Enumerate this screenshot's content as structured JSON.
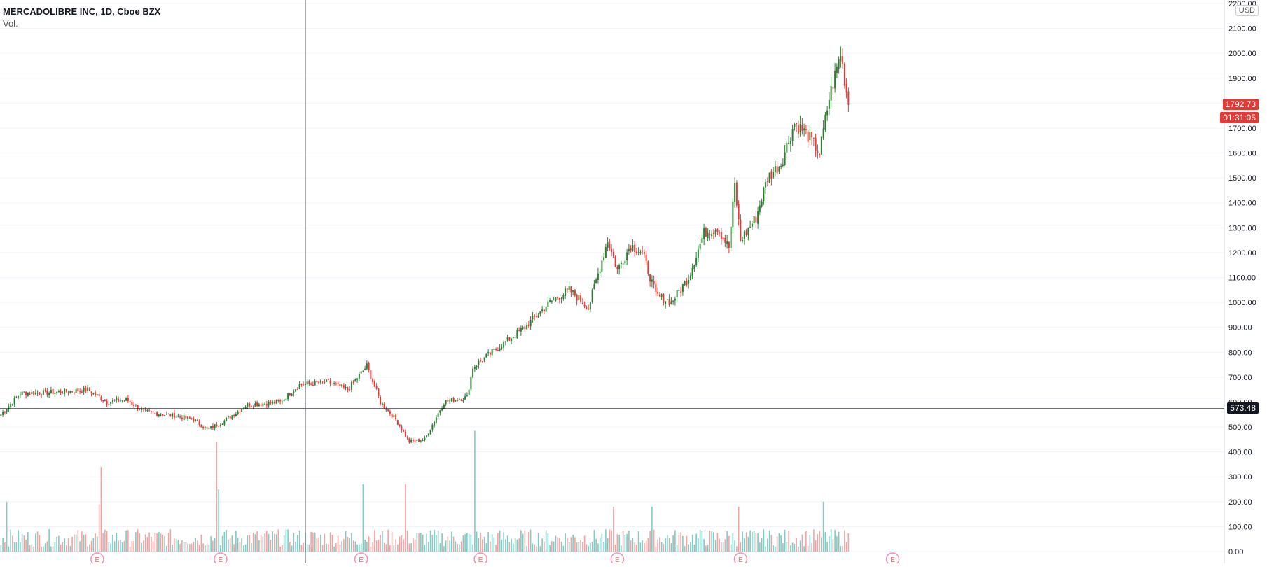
{
  "legend": {
    "symbol": "MERCADOLIBRE INC, 1D, Cboe BZX",
    "volume_label": "Vol."
  },
  "currency": "USD",
  "colors": {
    "up": "#26a69a",
    "up_candle": "#2e7d32",
    "down": "#e53935",
    "vol_up": "#80cbc4",
    "vol_down": "#f4a3a3",
    "price_badge": "#e53935",
    "crosshair_badge": "#131722",
    "grid": "#f0f3fa",
    "axis_text": "#131722"
  },
  "chart_data": {
    "type": "candlestick",
    "y_axis": {
      "ticks": [
        "0.00",
        "100.00",
        "200.00",
        "300.00",
        "400.00",
        "500.00",
        "600.00",
        "700.00",
        "800.00",
        "900.00",
        "1000.00",
        "1100.00",
        "1200.00",
        "1300.00",
        "1400.00",
        "1500.00",
        "1600.00",
        "1700.00",
        "1800.00",
        "1900.00",
        "2000.00",
        "2100.00",
        "2200.00"
      ],
      "range": [
        0,
        2200
      ]
    },
    "price_trend": [
      {
        "bar": 0,
        "close": 550
      },
      {
        "bar": 10,
        "close": 635
      },
      {
        "bar": 30,
        "close": 640
      },
      {
        "bar": 45,
        "close": 650
      },
      {
        "bar": 55,
        "close": 600
      },
      {
        "bar": 65,
        "close": 610
      },
      {
        "bar": 75,
        "close": 560
      },
      {
        "bar": 90,
        "close": 545
      },
      {
        "bar": 100,
        "close": 530
      },
      {
        "bar": 107,
        "close": 490
      },
      {
        "bar": 115,
        "close": 520
      },
      {
        "bar": 128,
        "close": 590
      },
      {
        "bar": 145,
        "close": 600
      },
      {
        "bar": 155,
        "close": 670
      },
      {
        "bar": 170,
        "close": 680
      },
      {
        "bar": 180,
        "close": 650
      },
      {
        "bar": 190,
        "close": 745
      },
      {
        "bar": 197,
        "close": 600
      },
      {
        "bar": 205,
        "close": 530
      },
      {
        "bar": 212,
        "close": 440
      },
      {
        "bar": 220,
        "close": 450
      },
      {
        "bar": 230,
        "close": 600
      },
      {
        "bar": 242,
        "close": 620
      },
      {
        "bar": 245,
        "close": 740
      },
      {
        "bar": 260,
        "close": 830
      },
      {
        "bar": 272,
        "close": 900
      },
      {
        "bar": 285,
        "close": 1000
      },
      {
        "bar": 295,
        "close": 1050
      },
      {
        "bar": 305,
        "close": 980
      },
      {
        "bar": 315,
        "close": 1250
      },
      {
        "bar": 320,
        "close": 1130
      },
      {
        "bar": 327,
        "close": 1230
      },
      {
        "bar": 333,
        "close": 1200
      },
      {
        "bar": 340,
        "close": 1030
      },
      {
        "bar": 348,
        "close": 1000
      },
      {
        "bar": 357,
        "close": 1100
      },
      {
        "bar": 365,
        "close": 1280
      },
      {
        "bar": 372,
        "close": 1300
      },
      {
        "bar": 378,
        "close": 1220
      },
      {
        "bar": 381,
        "close": 1470
      },
      {
        "bar": 384,
        "close": 1250
      },
      {
        "bar": 392,
        "close": 1340
      },
      {
        "bar": 398,
        "close": 1500
      },
      {
        "bar": 405,
        "close": 1560
      },
      {
        "bar": 412,
        "close": 1720
      },
      {
        "bar": 418,
        "close": 1680
      },
      {
        "bar": 425,
        "close": 1600
      },
      {
        "bar": 430,
        "close": 1820
      },
      {
        "bar": 436,
        "close": 2000
      },
      {
        "bar": 440,
        "close": 1792.73
      }
    ],
    "volume_spikes": [
      {
        "bar": 3,
        "volume": 200
      },
      {
        "bar": 52,
        "volume": 340
      },
      {
        "bar": 51,
        "volume": 190
      },
      {
        "bar": 112,
        "volume": 440
      },
      {
        "bar": 113,
        "volume": 250
      },
      {
        "bar": 188,
        "volume": 270
      },
      {
        "bar": 210,
        "volume": 270
      },
      {
        "bar": 246,
        "volume": 485
      },
      {
        "bar": 318,
        "volume": 180
      },
      {
        "bar": 338,
        "volume": 180
      },
      {
        "bar": 383,
        "volume": 180
      },
      {
        "bar": 427,
        "volume": 200
      }
    ],
    "earnings_markers": [
      50,
      114,
      187,
      249,
      320,
      384,
      463
    ],
    "earnings_label": "E",
    "last_price": "1792.73",
    "countdown": "01:31:05",
    "crosshair_price": "573.48",
    "crosshair_value": 573.48,
    "crosshair_bar": 158
  }
}
